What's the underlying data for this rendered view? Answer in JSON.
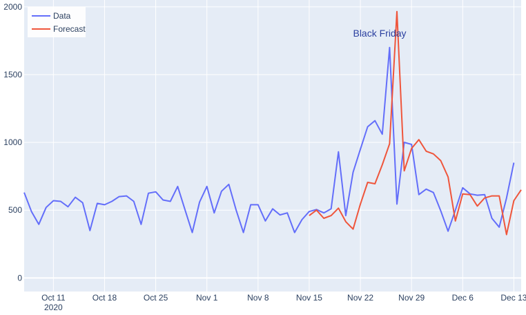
{
  "chart_data": {
    "type": "line",
    "x_unit": "date",
    "xlim": [
      "2020-10-07",
      "2020-12-14"
    ],
    "ylim": [
      -100,
      2050
    ],
    "grid": true,
    "legend_position": "top-left",
    "y_ticks": [
      0,
      500,
      1000,
      1500,
      2000
    ],
    "x_ticks": [
      {
        "date": "2020-10-11",
        "label": "Oct 11",
        "sublabel": "2020"
      },
      {
        "date": "2020-10-18",
        "label": "Oct 18"
      },
      {
        "date": "2020-10-25",
        "label": "Oct 25"
      },
      {
        "date": "2020-11-01",
        "label": "Nov 1"
      },
      {
        "date": "2020-11-08",
        "label": "Nov 8"
      },
      {
        "date": "2020-11-15",
        "label": "Nov 15"
      },
      {
        "date": "2020-11-22",
        "label": "Nov 22"
      },
      {
        "date": "2020-11-29",
        "label": "Nov 29"
      },
      {
        "date": "2020-12-06",
        "label": "Dec 6"
      },
      {
        "date": "2020-12-13",
        "label": "Dec 13"
      }
    ],
    "series": [
      {
        "name": "Data",
        "color": "#636efa",
        "start_date": "2020-10-07",
        "values": [
          630,
          490,
          395,
          520,
          570,
          565,
          525,
          595,
          555,
          350,
          550,
          540,
          565,
          600,
          605,
          565,
          395,
          625,
          635,
          575,
          565,
          675,
          505,
          335,
          560,
          675,
          480,
          640,
          690,
          500,
          335,
          540,
          540,
          420,
          510,
          465,
          480,
          335,
          430,
          490,
          505,
          480,
          510,
          930,
          460,
          780,
          950,
          1115,
          1160,
          1060,
          1700,
          545,
          1000,
          985,
          615,
          655,
          630,
          495,
          345,
          500,
          665,
          620,
          610,
          615,
          440,
          375,
          590,
          850
        ]
      },
      {
        "name": "Forecast",
        "color": "#ef553b",
        "start_date": "2020-11-15",
        "values": [
          460,
          500,
          440,
          460,
          515,
          415,
          360,
          545,
          705,
          695,
          835,
          990,
          1965,
          790,
          955,
          1020,
          935,
          915,
          865,
          745,
          420,
          620,
          615,
          530,
          590,
          605,
          605,
          320,
          570,
          650
        ]
      }
    ],
    "annotations": [
      {
        "text": "Black Friday",
        "date": "2020-11-27",
        "y": 1800,
        "color": "#2a3f9f"
      }
    ]
  }
}
